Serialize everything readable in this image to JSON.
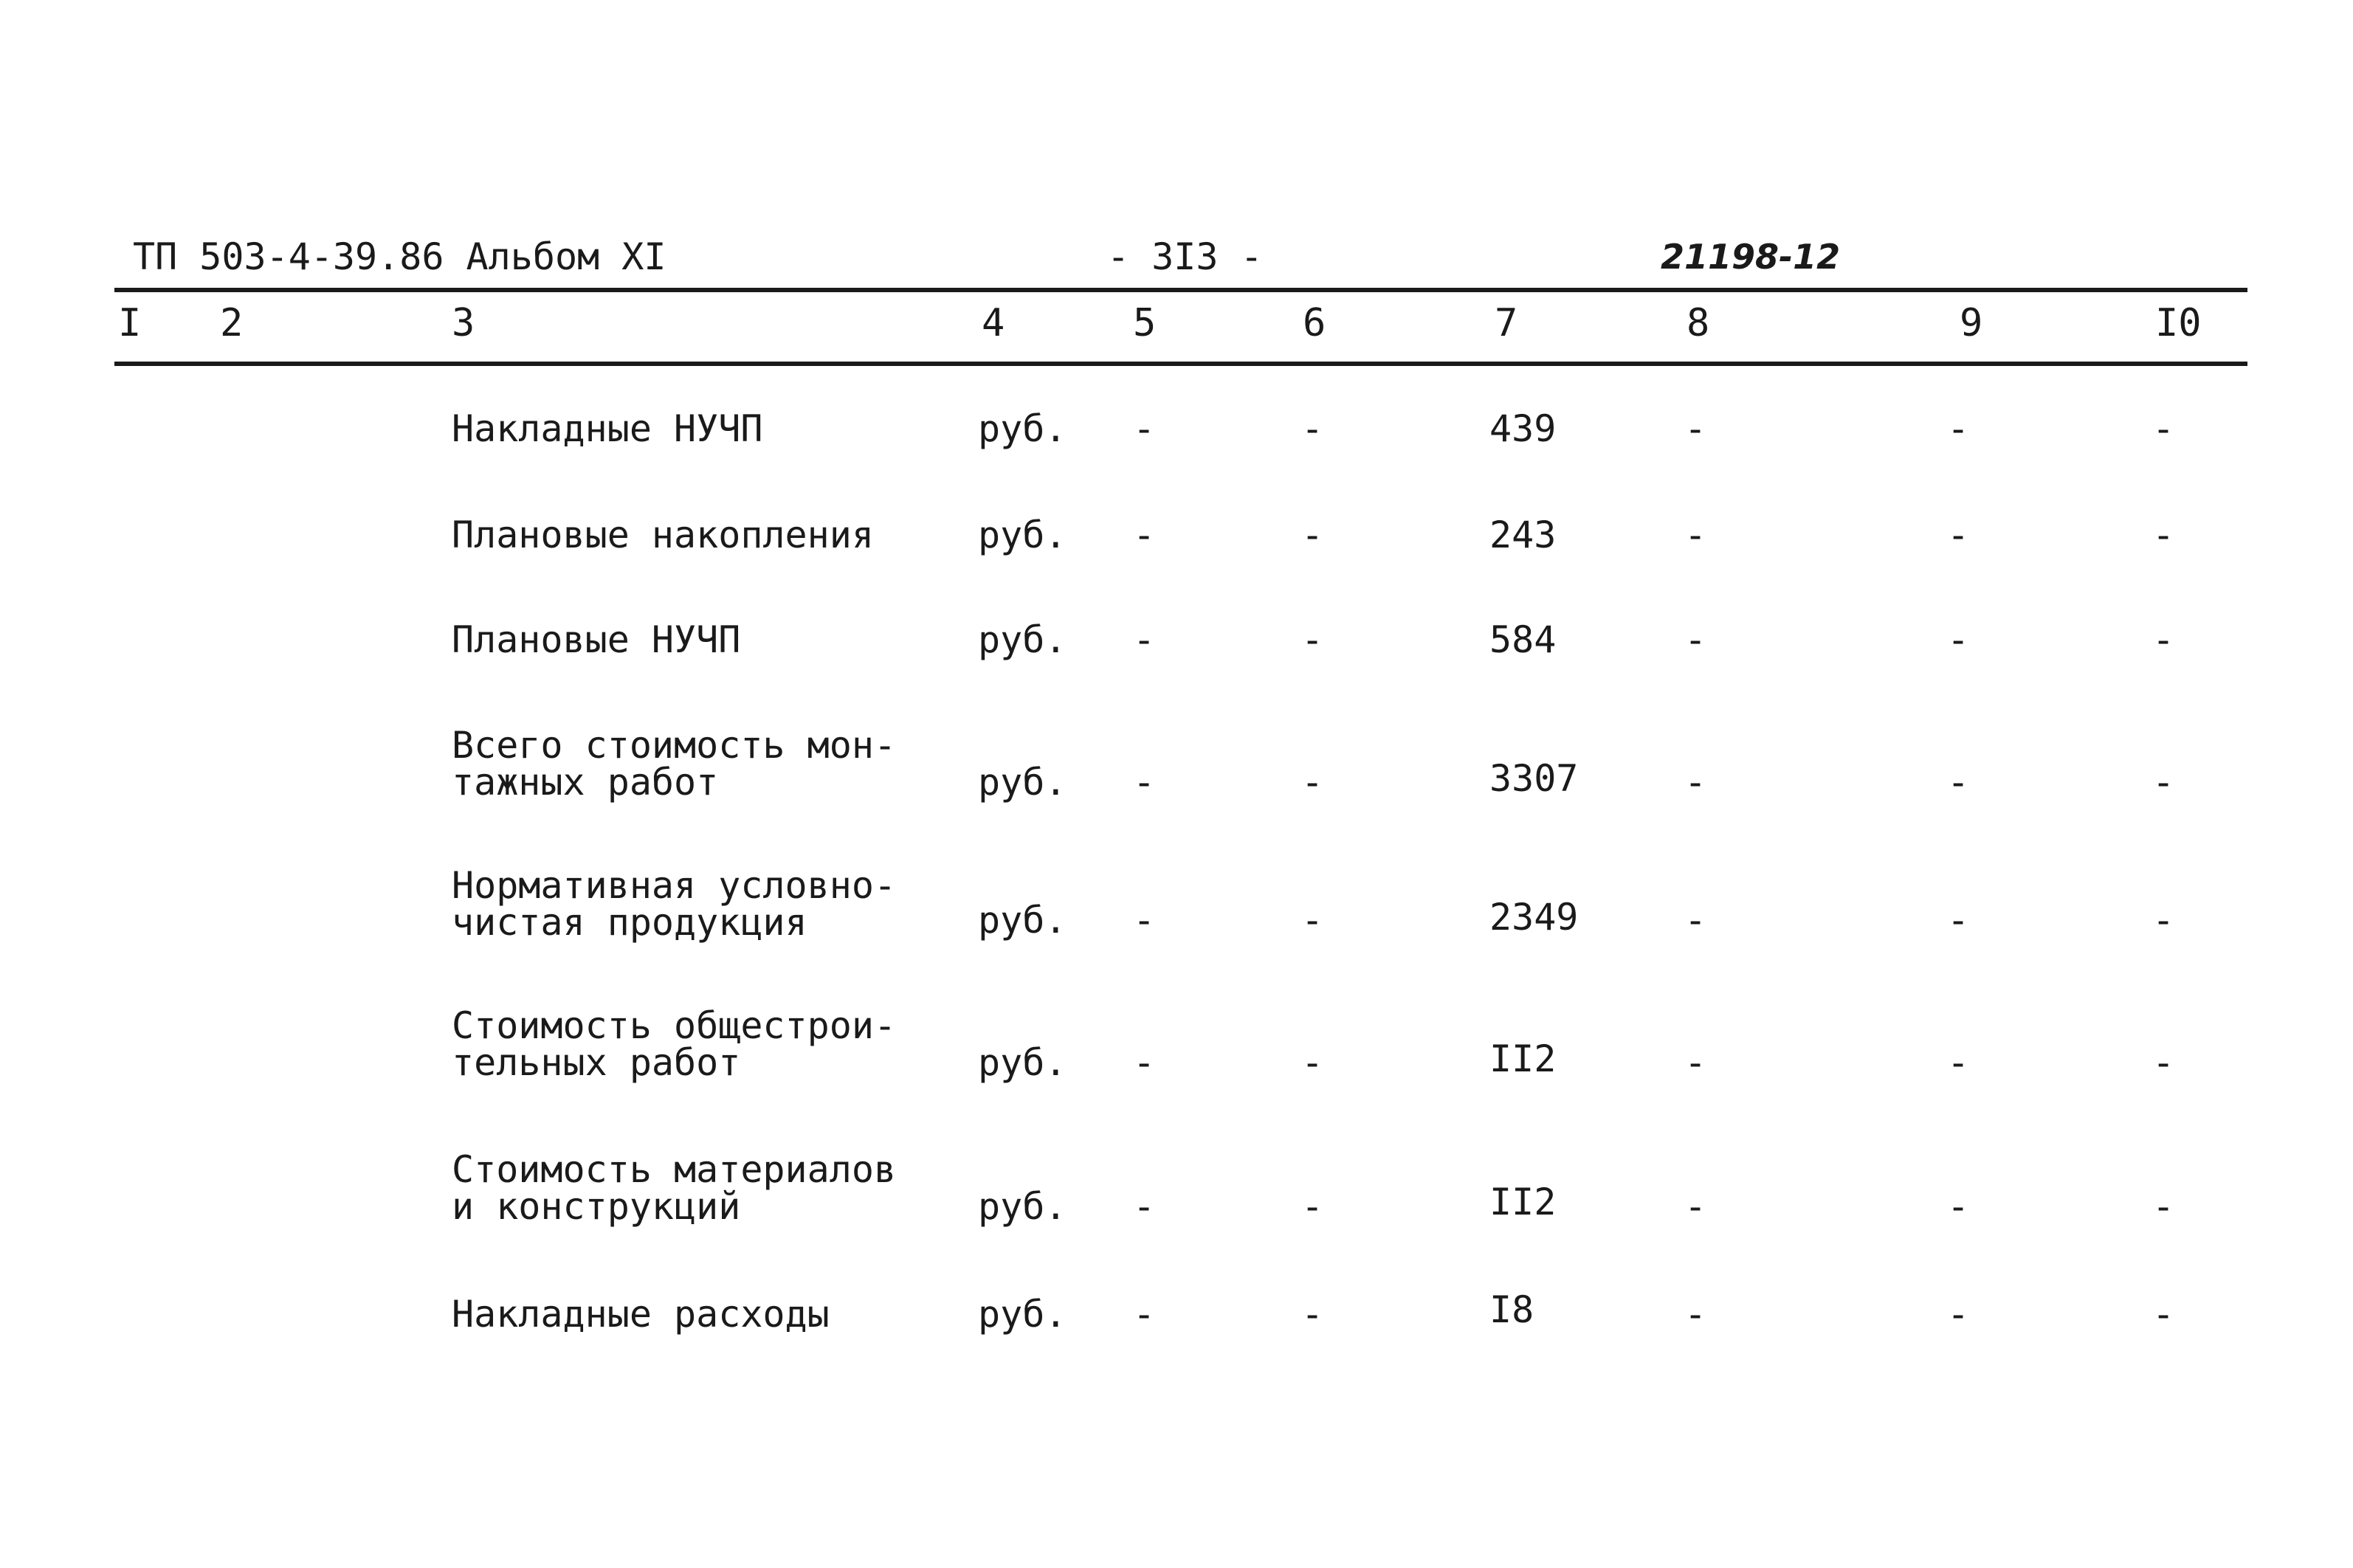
{
  "header": {
    "doc_code": "ТП 503-4-39.86 Альбом XI",
    "page_number": "- 3I3 -",
    "stamp": "21198-12"
  },
  "column_numbers": [
    "I",
    "2",
    "3",
    "4",
    "5",
    "6",
    "7",
    "8",
    "9",
    "I0"
  ],
  "rows": [
    {
      "name": [
        "Накладные НУЧП"
      ],
      "unit": "руб.",
      "c5": "-",
      "c6": "-",
      "c7": "439",
      "c8": "-",
      "c9": "-",
      "c10": "-"
    },
    {
      "name": [
        "Плановые накопления"
      ],
      "unit": "руб.",
      "c5": "-",
      "c6": "-",
      "c7": "243",
      "c8": "-",
      "c9": "-",
      "c10": "-"
    },
    {
      "name": [
        "Плановые НУЧП"
      ],
      "unit": "руб.",
      "c5": "-",
      "c6": "-",
      "c7": "584",
      "c8": "-",
      "c9": "-",
      "c10": "-"
    },
    {
      "name": [
        "Всего стоимость мон-",
        "тажных работ"
      ],
      "unit": "руб.",
      "c5": "-",
      "c6": "-",
      "c7": "3307",
      "c8": "-",
      "c9": "-",
      "c10": "-"
    },
    {
      "name": [
        "Нормативная условно-",
        "чистая продукция"
      ],
      "unit": "руб.",
      "c5": "-",
      "c6": "-",
      "c7": "2349",
      "c8": "-",
      "c9": "-",
      "c10": "-"
    },
    {
      "name": [
        "Стоимость общестрои-",
        "тельных работ"
      ],
      "unit": "руб.",
      "c5": "-",
      "c6": "-",
      "c7": "II2",
      "c8": "-",
      "c9": "-",
      "c10": "-"
    },
    {
      "name": [
        "Стоимость материалов",
        "и конструкций"
      ],
      "unit": "руб.",
      "c5": "-",
      "c6": "-",
      "c7": "II2",
      "c8": "-",
      "c9": "-",
      "c10": "-"
    },
    {
      "name": [
        "Накладные расходы"
      ],
      "unit": "руб.",
      "c5": "-",
      "c6": "-",
      "c7": "I8",
      "c8": "-",
      "c9": "-",
      "c10": "-"
    }
  ]
}
